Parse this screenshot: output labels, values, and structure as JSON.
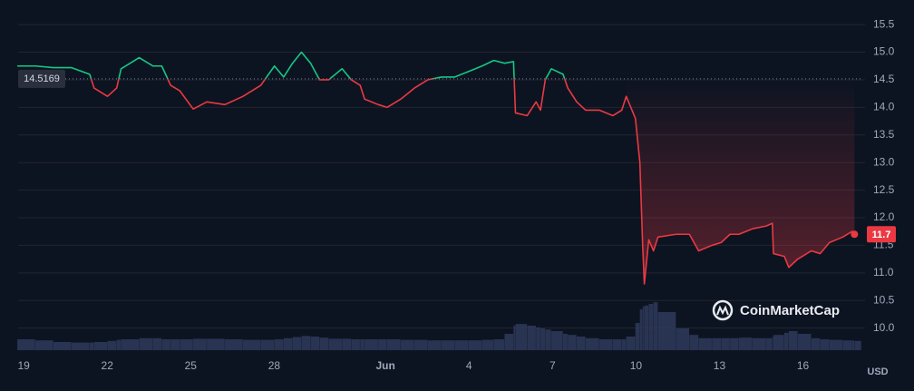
{
  "chart_data": {
    "type": "line",
    "currency": "USD",
    "watermark": "CoinMarketCap",
    "baseline": {
      "value": 14.5169,
      "label": "14.5169"
    },
    "up_color": "#16c784",
    "down_color": "#ea3943",
    "x": [
      -0.23,
      0.42,
      1.07,
      1.72,
      2.37,
      2.53,
      3.01,
      3.34,
      3.5,
      4.15,
      4.64,
      4.96,
      5.28,
      5.61,
      6.09,
      6.58,
      7.23,
      7.88,
      8.52,
      9.01,
      9.34,
      9.66,
      9.98,
      10.31,
      10.63,
      10.96,
      11.44,
      11.77,
      12.09,
      12.25,
      12.74,
      13.06,
      13.55,
      14.04,
      14.52,
      15.01,
      15.49,
      15.98,
      16.47,
      16.89,
      17.28,
      17.6,
      17.67,
      18.09,
      18.41,
      18.57,
      18.74,
      18.96,
      19.38,
      19.55,
      19.87,
      20.19,
      20.68,
      21.17,
      21.49,
      21.65,
      21.98,
      22.14,
      22.24,
      22.3,
      22.46,
      22.63,
      22.79,
      23.44,
      23.92,
      24.25,
      24.73,
      25.06,
      25.38,
      25.7,
      26.19,
      26.68,
      26.9,
      26.94,
      27.33,
      27.49,
      27.81,
      28.3,
      28.62,
      28.95,
      29.43,
      29.76,
      29.85
    ],
    "values": [
      14.75,
      14.75,
      14.72,
      14.72,
      14.6,
      14.35,
      14.2,
      14.35,
      14.7,
      14.9,
      14.75,
      14.75,
      14.4,
      14.3,
      13.97,
      14.1,
      14.05,
      14.2,
      14.4,
      14.75,
      14.55,
      14.8,
      15.0,
      14.8,
      14.5,
      14.5,
      14.7,
      14.5,
      14.4,
      14.15,
      14.05,
      14.0,
      14.15,
      14.35,
      14.5,
      14.55,
      14.55,
      14.65,
      14.75,
      14.85,
      14.8,
      14.83,
      13.9,
      13.85,
      14.1,
      13.95,
      14.5,
      14.7,
      14.6,
      14.35,
      14.1,
      13.95,
      13.95,
      13.85,
      13.95,
      14.2,
      13.8,
      13.0,
      11.5,
      10.8,
      11.6,
      11.4,
      11.65,
      11.7,
      11.7,
      11.4,
      11.5,
      11.55,
      11.7,
      11.7,
      11.8,
      11.85,
      11.9,
      11.35,
      11.3,
      11.1,
      11.25,
      11.4,
      11.35,
      11.55,
      11.65,
      11.75,
      11.7
    ],
    "volume": {
      "color": "#2f3a5c",
      "ylim": [
        0,
        100
      ],
      "values": [
        20,
        18,
        15,
        14,
        14,
        15,
        17,
        19,
        20,
        22,
        22,
        20,
        20,
        20,
        21,
        21,
        20,
        19,
        19,
        20,
        22,
        24,
        26,
        25,
        23,
        21,
        21,
        20,
        20,
        20,
        20,
        20,
        19,
        19,
        18,
        18,
        18,
        18,
        19,
        20,
        30,
        45,
        48,
        45,
        42,
        40,
        38,
        35,
        30,
        28,
        25,
        22,
        20,
        20,
        20,
        25,
        50,
        75,
        80,
        82,
        85,
        88,
        70,
        40,
        28,
        22,
        22,
        22,
        22,
        23,
        22,
        22,
        25,
        28,
        32,
        35,
        30,
        22,
        20,
        19,
        18,
        18,
        17
      ]
    },
    "xlim": [
      -0.2,
      30.1
    ],
    "xticks": [
      {
        "value": 0,
        "label": "19"
      },
      {
        "value": 3,
        "label": "22"
      },
      {
        "value": 6,
        "label": "25"
      },
      {
        "value": 9,
        "label": "28"
      },
      {
        "value": 13,
        "label": "Jun"
      },
      {
        "value": 16,
        "label": "4"
      },
      {
        "value": 19,
        "label": "7"
      },
      {
        "value": 22,
        "label": "10"
      },
      {
        "value": 25,
        "label": "13"
      },
      {
        "value": 28,
        "label": "16"
      }
    ],
    "ylim": [
      9.6,
      15.65
    ],
    "yticks": [
      {
        "value": 10,
        "label": "10.0"
      },
      10.5,
      {
        "value": 11,
        "label": "11.0"
      },
      11.5,
      {
        "value": 12,
        "label": "12.0"
      },
      12.5,
      {
        "value": 13,
        "label": "13.0"
      },
      13.5,
      {
        "value": 14,
        "label": "14.0"
      },
      14.5,
      {
        "value": 15,
        "label": "15.0"
      },
      15.5
    ],
    "grid": true,
    "grid_color": "#222531"
  }
}
